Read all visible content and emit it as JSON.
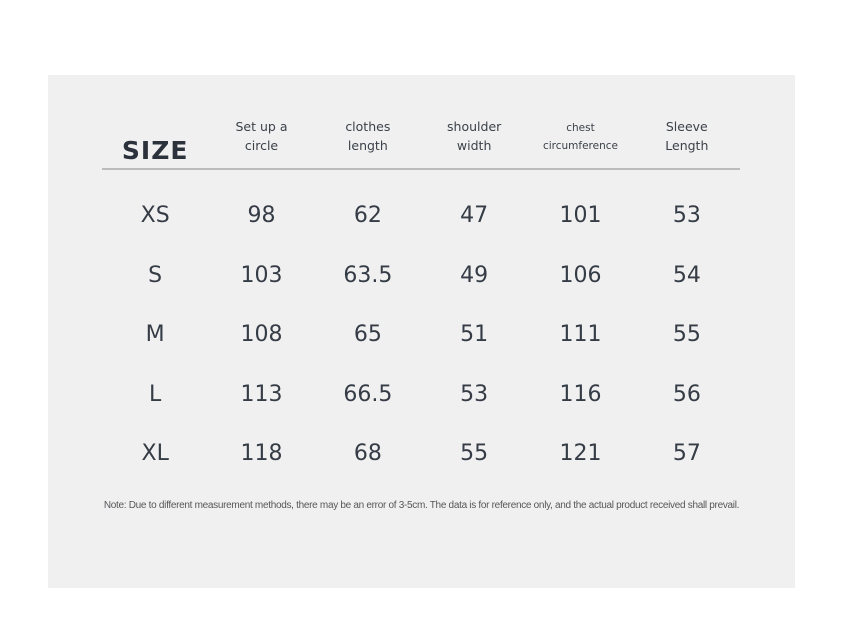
{
  "colors": {
    "page-bg": "#ffffff",
    "panel-bg": "#f0f0f1",
    "text-title": "#2b323b",
    "text-header": "#3b4149",
    "text-cell": "#353c45",
    "text-note": "#565758",
    "divider": "#bcbcbe"
  },
  "chart_data": {
    "type": "table",
    "title": "SIZE",
    "columns": [
      {
        "label": "Set up a circle",
        "lines": [
          "Set up a",
          "circle"
        ]
      },
      {
        "label": "clothes length",
        "lines": [
          "clothes",
          "length"
        ]
      },
      {
        "label": "shoulder width",
        "lines": [
          "shoulder",
          "width"
        ]
      },
      {
        "label": "chest circumference",
        "lines": [
          "chest",
          "circumference"
        ]
      },
      {
        "label": "Sleeve Length",
        "lines": [
          "Sleeve",
          "Length"
        ]
      }
    ],
    "rows": [
      {
        "size": "XS",
        "values": [
          98,
          62,
          47,
          101,
          53
        ]
      },
      {
        "size": "S",
        "values": [
          103,
          63.5,
          49,
          106,
          54
        ]
      },
      {
        "size": "M",
        "values": [
          108,
          65,
          51,
          111,
          55
        ]
      },
      {
        "size": "L",
        "values": [
          113,
          66.5,
          53,
          116,
          56
        ]
      },
      {
        "size": "XL",
        "values": [
          118,
          68,
          55,
          121,
          57
        ]
      }
    ],
    "note": "Note: Due to different measurement methods, there may be an error of 3-5cm. The data is for reference only, and the actual product received shall prevail."
  }
}
